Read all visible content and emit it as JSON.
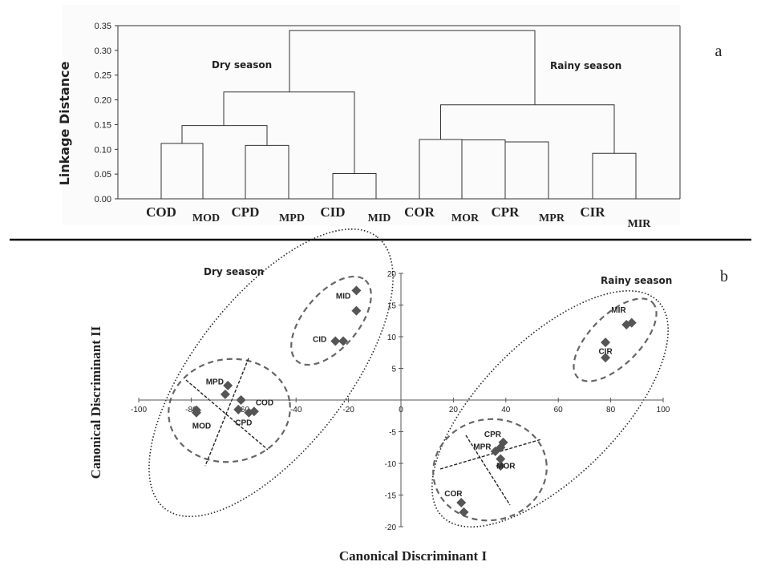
{
  "chart_data": [
    {
      "type": "dendrogram",
      "panel_label": "a",
      "ylabel": "Linkage Distance",
      "ylim": [
        0,
        0.35
      ],
      "yticks": [
        "0.00",
        "0.05",
        "0.10",
        "0.15",
        "0.20",
        "0.25",
        "0.30",
        "0.35"
      ],
      "leaves": [
        "COD",
        "MOD",
        "CPD",
        "MPD",
        "CID",
        "MID",
        "COR",
        "MOR",
        "CPR",
        "MPR",
        "CIR",
        "MIR"
      ],
      "annotations": [
        "Dry season",
        "Rainy season"
      ],
      "merges": [
        {
          "left": "COD",
          "right": "MOD",
          "height": 0.112
        },
        {
          "left": "CPD",
          "right": "MPD",
          "height": 0.108
        },
        {
          "left": "CID",
          "right": "MID",
          "height": 0.051
        },
        {
          "left": "COD-MOD",
          "right": "CPD-MPD",
          "height": 0.148
        },
        {
          "left": "COD-MPD",
          "right": "CID-MID",
          "height": 0.216
        },
        {
          "left": "MOR",
          "right": "CPR",
          "height": 0.119
        },
        {
          "left": "MOR-CPR",
          "right": "MPR",
          "height": 0.115
        },
        {
          "left": "COR",
          "right": "MOR-MPR",
          "height": 0.12
        },
        {
          "left": "CIR",
          "right": "MIR",
          "height": 0.092
        },
        {
          "left": "COR-MPR",
          "right": "CIR-MIR",
          "height": 0.19
        },
        {
          "left": "Dry",
          "right": "Rainy",
          "height": 0.34
        }
      ]
    },
    {
      "type": "scatter",
      "panel_label": "b",
      "xlabel": "Canonical Discriminant I",
      "ylabel": "Canonical Discriminant II",
      "xlim": [
        -100,
        100
      ],
      "ylim": [
        -20,
        20
      ],
      "xticks": [
        -100,
        -80,
        -60,
        -40,
        -20,
        0,
        20,
        40,
        60,
        80,
        100
      ],
      "yticks": [
        -20,
        -15,
        -10,
        -5,
        0,
        5,
        10,
        15,
        20
      ],
      "annotations": [
        "Dry season",
        "Rainy season"
      ],
      "point_labels": [
        {
          "text": "MID",
          "x": -22,
          "y": 16.0
        },
        {
          "text": "CID",
          "x": -31,
          "y": 9.2
        },
        {
          "text": "MPD",
          "x": -71,
          "y": 2.5
        },
        {
          "text": "COD",
          "x": -52,
          "y": -0.8
        },
        {
          "text": "MOD",
          "x": -76,
          "y": -4.5
        },
        {
          "text": "CPD",
          "x": -60,
          "y": -4.0
        },
        {
          "text": "MIR",
          "x": 83,
          "y": 13.8
        },
        {
          "text": "CIR",
          "x": 78,
          "y": 7.3
        },
        {
          "text": "CPR",
          "x": 35,
          "y": -5.8
        },
        {
          "text": "MPR",
          "x": 31,
          "y": -7.8
        },
        {
          "text": "MOR",
          "x": 40,
          "y": -10.8
        },
        {
          "text": "COR",
          "x": 20,
          "y": -15.2
        }
      ],
      "series": [
        {
          "points": [
            [
              -17,
              17.3
            ],
            [
              -17,
              14.1
            ],
            [
              -25,
              9.3
            ],
            [
              -22,
              9.3
            ],
            [
              -66,
              2.3
            ],
            [
              -67,
              0.9
            ],
            [
              -61,
              0.0
            ],
            [
              -62,
              -1.5
            ],
            [
              -58,
              -2.0
            ],
            [
              -56,
              -1.8
            ],
            [
              -78,
              -1.6
            ],
            [
              -78,
              -2.0
            ],
            [
              78,
              9.1
            ],
            [
              78,
              6.7
            ],
            [
              86,
              11.9
            ],
            [
              88,
              12.2
            ],
            [
              39,
              -6.7
            ],
            [
              38,
              -7.5
            ],
            [
              36,
              -8.1
            ],
            [
              38,
              -9.3
            ],
            [
              38,
              -10.4
            ],
            [
              23,
              -16.2
            ],
            [
              24,
              -17.7
            ]
          ]
        }
      ]
    }
  ]
}
